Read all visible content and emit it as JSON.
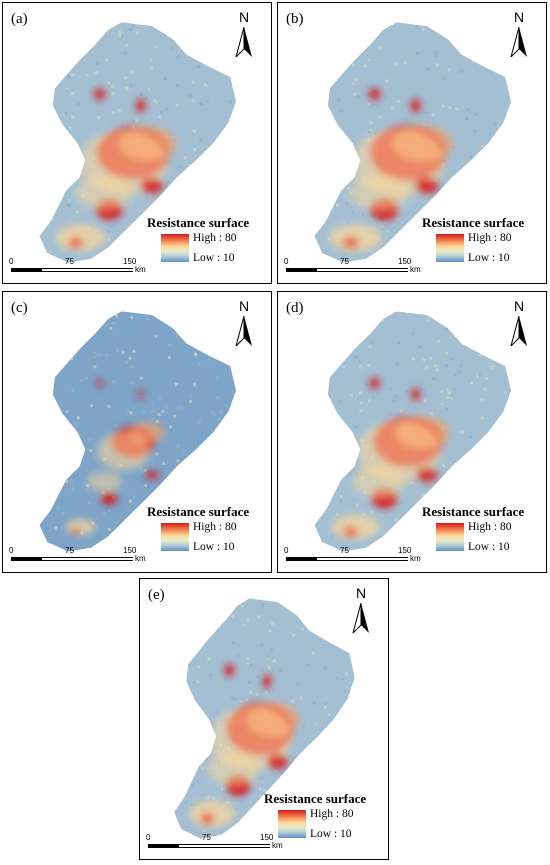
{
  "panels": [
    {
      "id": "a",
      "label": "(a)",
      "intensity": 1.0
    },
    {
      "id": "b",
      "label": "(b)",
      "intensity": 1.05
    },
    {
      "id": "c",
      "label": "(c)",
      "intensity": 0.6
    },
    {
      "id": "d",
      "label": "(d)",
      "intensity": 0.95
    },
    {
      "id": "e",
      "label": "(e)",
      "intensity": 1.0
    }
  ],
  "north_arrow": {
    "label": "N"
  },
  "legend": {
    "title": "Resistance surface",
    "high_label": "High : 80",
    "low_label": "Low : 10",
    "colors": {
      "high": "#d7191c",
      "mid": "#fdd99a",
      "low": "#5e8fc1"
    }
  },
  "scale_bar": {
    "ticks": [
      "0",
      "75",
      "150"
    ],
    "unit": "km"
  }
}
